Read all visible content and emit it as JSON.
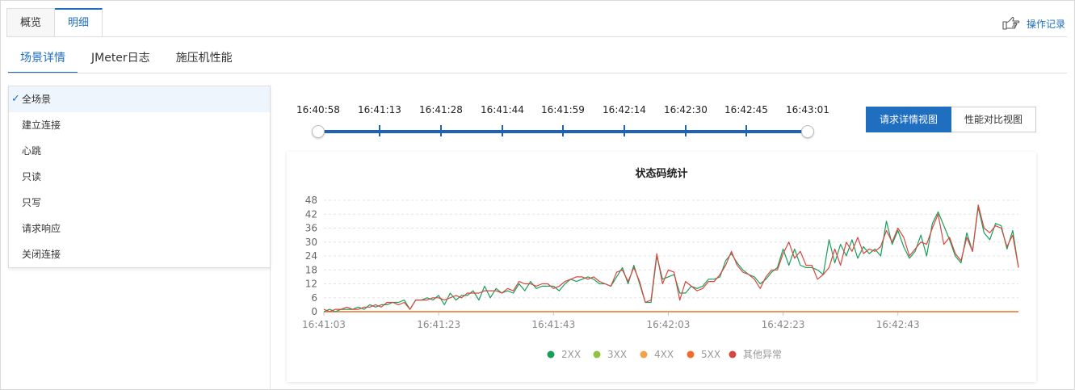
{
  "top_tabs": [
    "概览",
    "明细"
  ],
  "top_active": 1,
  "op_record_label": "操作记录",
  "sub_tabs": [
    "场景详情",
    "JMeter日志",
    "施压机性能"
  ],
  "sub_active": 0,
  "scene_list": [
    "全场景",
    "建立连接",
    "心跳",
    "只读",
    "只写",
    "请求响应",
    "关闭连接"
  ],
  "scene_selected": 0,
  "timeline_labels": [
    "16:40:58",
    "16:41:13",
    "16:41:28",
    "16:41:44",
    "16:41:59",
    "16:42:14",
    "16:42:30",
    "16:42:45",
    "16:43:01"
  ],
  "view_buttons": [
    "请求详情视图",
    "性能对比视图"
  ],
  "view_active": 0,
  "chart_data": {
    "type": "line",
    "title": "状态码统计",
    "y_ticks": [
      0,
      6,
      12,
      18,
      24,
      30,
      36,
      42,
      48
    ],
    "ylim": [
      0,
      48
    ],
    "x_tick_labels": [
      "16:41:03",
      "16:41:23",
      "16:41:43",
      "16:42:03",
      "16:42:23",
      "16:42:43"
    ],
    "x_tick_index": [
      0,
      20,
      40,
      60,
      80,
      100
    ],
    "grid": true,
    "legend_position": "bottom",
    "series": [
      {
        "name": "2XX",
        "color": "#1a9e5c",
        "values": [
          0,
          1,
          0,
          1,
          1,
          1,
          2,
          1,
          3,
          2,
          3,
          3,
          4,
          4,
          5,
          1,
          5,
          5,
          6,
          5,
          7,
          3,
          8,
          5,
          7,
          7,
          9,
          5,
          11,
          6,
          10,
          8,
          9,
          8,
          12,
          9,
          13,
          10,
          11,
          11,
          11,
          9,
          12,
          14,
          13,
          14,
          15,
          14,
          12,
          12,
          11,
          15,
          19,
          12,
          20,
          12,
          4,
          4,
          24,
          14,
          15,
          16,
          8,
          8,
          11,
          10,
          11,
          14,
          14,
          15,
          22,
          25,
          21,
          18,
          16,
          15,
          12,
          14,
          17,
          19,
          27,
          20,
          27,
          20,
          19,
          19,
          18,
          16,
          31,
          21,
          29,
          24,
          31,
          23,
          28,
          25,
          27,
          24,
          39,
          29,
          35,
          28,
          23,
          26,
          33,
          24,
          38,
          43,
          37,
          31,
          24,
          21,
          34,
          26,
          45,
          34,
          31,
          38,
          37,
          27,
          35,
          19
        ]
      },
      {
        "name": "3XX",
        "color": "#8bc43f",
        "values": [
          0,
          0,
          0,
          0,
          0,
          0,
          0,
          0,
          0,
          0,
          0,
          0,
          0,
          0,
          0,
          0,
          0,
          0,
          0,
          0,
          0,
          0,
          0,
          0,
          0,
          0,
          0,
          0,
          0,
          0,
          0,
          0,
          0,
          0,
          0,
          0,
          0,
          0,
          0,
          0,
          0,
          0,
          0,
          0,
          0,
          0,
          0,
          0,
          0,
          0,
          0,
          0,
          0,
          0,
          0,
          0,
          0,
          0,
          0,
          0,
          0,
          0,
          0,
          0,
          0,
          0,
          0,
          0,
          0,
          0,
          0,
          0,
          0,
          0,
          0,
          0,
          0,
          0,
          0,
          0,
          0,
          0,
          0,
          0,
          0,
          0,
          0,
          0,
          0,
          0,
          0,
          0,
          0,
          0,
          0,
          0,
          0,
          0,
          0,
          0,
          0,
          0,
          0,
          0,
          0,
          0,
          0,
          0,
          0,
          0,
          0,
          0,
          0,
          0,
          0,
          0,
          0,
          0,
          0,
          0,
          0,
          0
        ]
      },
      {
        "name": "4XX",
        "color": "#f5a14a",
        "values": [
          0,
          0,
          0,
          0,
          0,
          0,
          0,
          0,
          0,
          0,
          0,
          0,
          0,
          0,
          0,
          0,
          0,
          0,
          0,
          0,
          0,
          0,
          0,
          0,
          0,
          0,
          0,
          0,
          0,
          0,
          0,
          0,
          0,
          0,
          0,
          0,
          0,
          0,
          0,
          0,
          0,
          0,
          0,
          0,
          0,
          0,
          0,
          0,
          0,
          0,
          0,
          0,
          0,
          0,
          0,
          0,
          0,
          0,
          0,
          0,
          0,
          0,
          0,
          0,
          0,
          0,
          0,
          0,
          0,
          0,
          0,
          0,
          0,
          0,
          0,
          0,
          0,
          0,
          0,
          0,
          0,
          0,
          0,
          0,
          0,
          0,
          0,
          0,
          0,
          0,
          0,
          0,
          0,
          0,
          0,
          0,
          0,
          0,
          0,
          0,
          0,
          0,
          0,
          0,
          0,
          0,
          0,
          0,
          0,
          0,
          0,
          0,
          0,
          0,
          0,
          0,
          0,
          0,
          0,
          0,
          0,
          0
        ]
      },
      {
        "name": "5XX",
        "color": "#f36b2a",
        "values": [
          0,
          0,
          0,
          0,
          0,
          0,
          0,
          0,
          0,
          0,
          0,
          0,
          0,
          0,
          0,
          0,
          0,
          0,
          0,
          0,
          0,
          0,
          0,
          0,
          0,
          0,
          0,
          0,
          0,
          0,
          0,
          0,
          0,
          0,
          0,
          0,
          0,
          0,
          0,
          0,
          0,
          0,
          0,
          0,
          0,
          0,
          0,
          0,
          0,
          0,
          0,
          0,
          0,
          0,
          0,
          0,
          0,
          0,
          0,
          0,
          0,
          0,
          0,
          0,
          0,
          0,
          0,
          0,
          0,
          0,
          0,
          0,
          0,
          0,
          0,
          0,
          0,
          0,
          0,
          0,
          0,
          0,
          0,
          0,
          0,
          0,
          0,
          0,
          0,
          0,
          0,
          0,
          0,
          0,
          0,
          0,
          0,
          0,
          0,
          0,
          0,
          0,
          0,
          0,
          0,
          0,
          0,
          0,
          0,
          0,
          0,
          0,
          0,
          0,
          0,
          0,
          0,
          0,
          0,
          0,
          0,
          0
        ]
      },
      {
        "name": "其他异常",
        "color": "#d9463f",
        "values": [
          1,
          0,
          1,
          1,
          2,
          1,
          1,
          2,
          2,
          3,
          2,
          4,
          4,
          3,
          4,
          1,
          5,
          5,
          5,
          6,
          6,
          5,
          6,
          7,
          6,
          8,
          8,
          8,
          9,
          9,
          9,
          8,
          10,
          9,
          13,
          12,
          12,
          11,
          12,
          12,
          10,
          11,
          13,
          14,
          15,
          15,
          14,
          15,
          13,
          12,
          11,
          17,
          18,
          13,
          19,
          13,
          4,
          5,
          25,
          12,
          18,
          17,
          5,
          13,
          11,
          9,
          10,
          13,
          13,
          16,
          20,
          26,
          20,
          17,
          16,
          14,
          10,
          15,
          18,
          18,
          25,
          30,
          23,
          26,
          20,
          20,
          14,
          16,
          19,
          27,
          20,
          30,
          26,
          32,
          25,
          27,
          26,
          28,
          35,
          30,
          36,
          32,
          24,
          27,
          30,
          29,
          36,
          42,
          29,
          32,
          25,
          22,
          32,
          26,
          46,
          36,
          34,
          37,
          36,
          28,
          33,
          19
        ]
      }
    ]
  }
}
